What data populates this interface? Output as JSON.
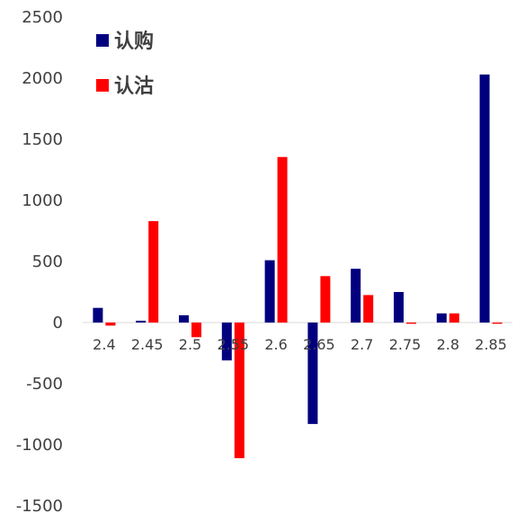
{
  "chart_data": {
    "type": "bar",
    "categories": [
      "2.4",
      "2.45",
      "2.5",
      "2.55",
      "2.6",
      "2.65",
      "2.7",
      "2.75",
      "2.8",
      "2.85"
    ],
    "series": [
      {
        "name": "认购",
        "color": "#00007f",
        "values": [
          120,
          15,
          60,
          -310,
          510,
          -830,
          440,
          250,
          75,
          2030
        ]
      },
      {
        "name": "认沽",
        "color": "#ff0000",
        "values": [
          -25,
          830,
          -120,
          -1110,
          1355,
          380,
          225,
          -10,
          75,
          -10
        ]
      }
    ],
    "yticks": [
      2500,
      2000,
      1500,
      1000,
      500,
      0,
      -500,
      -1000,
      -1500
    ],
    "ylim": [
      -1500,
      2500
    ],
    "grid": false,
    "legend_position": "top-left"
  }
}
